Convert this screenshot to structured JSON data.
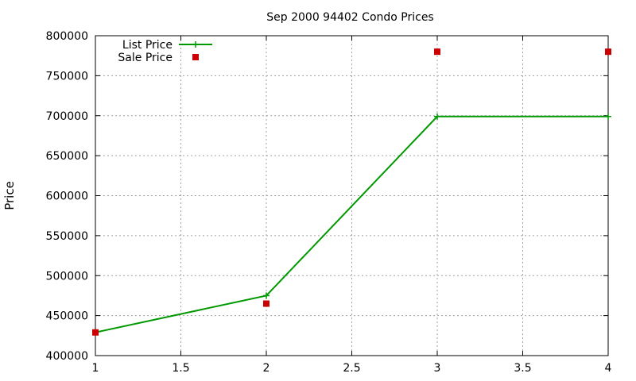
{
  "chart_data": {
    "type": "line",
    "title": "Sep 2000 94402 Condo Prices",
    "xlabel": "",
    "ylabel": "Price",
    "xlim": [
      1,
      4
    ],
    "ylim": [
      400000,
      800000
    ],
    "x_ticks": [
      1,
      1.5,
      2,
      2.5,
      3,
      3.5,
      4
    ],
    "y_ticks": [
      400000,
      450000,
      500000,
      550000,
      600000,
      650000,
      700000,
      750000,
      800000
    ],
    "grid": true,
    "legend_position": "top-left",
    "series": [
      {
        "name": "List Price",
        "style": "linespoints",
        "marker": "plus",
        "color": "#009900",
        "x": [
          1,
          2,
          3,
          4
        ],
        "y": [
          429000,
          475000,
          699000,
          699000
        ]
      },
      {
        "name": "Sale Price",
        "style": "points",
        "marker": "square",
        "color": "#cc0000",
        "x": [
          1,
          2,
          3,
          4
        ],
        "y": [
          429000,
          465000,
          780000,
          780000
        ]
      }
    ]
  }
}
